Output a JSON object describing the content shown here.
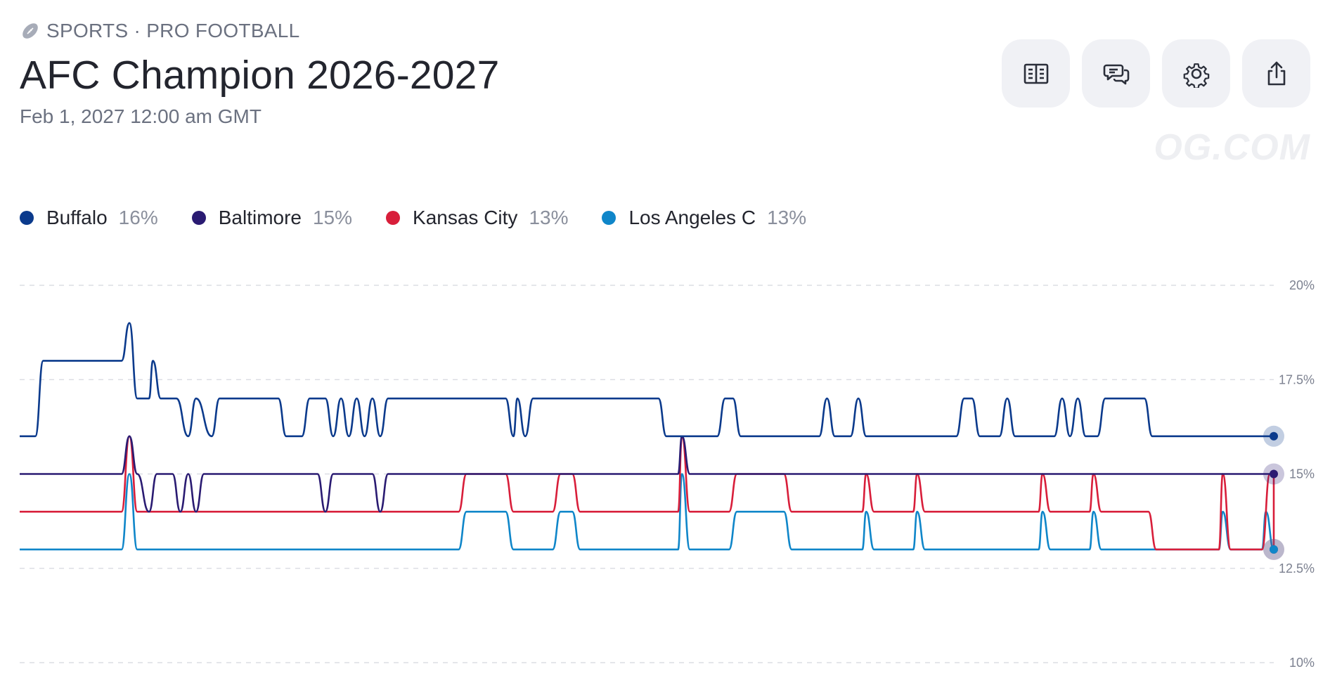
{
  "header": {
    "breadcrumb": "SPORTS · PRO FOOTBALL",
    "title": "AFC Champion 2026-2027",
    "subtitle": "Feb 1, 2027 12:00 am GMT",
    "watermark": "OG.COM"
  },
  "actions": [
    {
      "name": "rules-button",
      "icon": "book-icon"
    },
    {
      "name": "comments-button",
      "icon": "chat-icon"
    },
    {
      "name": "settings-button",
      "icon": "gear-icon"
    },
    {
      "name": "share-button",
      "icon": "share-icon"
    }
  ],
  "legend": [
    {
      "label": "Buffalo",
      "pct": "16%",
      "color": "#0b3a8c"
    },
    {
      "label": "Baltimore",
      "pct": "15%",
      "color": "#2a1b72"
    },
    {
      "label": "Kansas City",
      "pct": "13%",
      "color": "#d81e3a"
    },
    {
      "label": "Los Angeles C",
      "pct": "13%",
      "color": "#0f86c9"
    }
  ],
  "chart_data": {
    "type": "line",
    "ylim": [
      10,
      20
    ],
    "yticks": [
      "20%",
      "17.5%",
      "15%",
      "12.5%",
      "10%"
    ],
    "grid": true,
    "legend_position": "top-left",
    "series": [
      {
        "name": "Buffalo",
        "color": "#0b3a8c",
        "base": 16,
        "points": [
          [
            0.0,
            16
          ],
          [
            0.02,
            16
          ],
          [
            0.03,
            18
          ],
          [
            0.13,
            18
          ],
          [
            0.14,
            19
          ],
          [
            0.15,
            17
          ],
          [
            0.165,
            17
          ],
          [
            0.17,
            18
          ],
          [
            0.18,
            17
          ],
          [
            0.2,
            17
          ],
          [
            0.215,
            16
          ],
          [
            0.225,
            17
          ],
          [
            0.245,
            16
          ],
          [
            0.255,
            17
          ],
          [
            0.33,
            17
          ],
          [
            0.34,
            16
          ],
          [
            0.36,
            16
          ],
          [
            0.37,
            17
          ],
          [
            0.39,
            17
          ],
          [
            0.4,
            16
          ],
          [
            0.41,
            17
          ],
          [
            0.42,
            16
          ],
          [
            0.43,
            17
          ],
          [
            0.44,
            16
          ],
          [
            0.45,
            17
          ],
          [
            0.46,
            16
          ],
          [
            0.47,
            17
          ],
          [
            0.62,
            17
          ],
          [
            0.63,
            16
          ],
          [
            0.635,
            17
          ],
          [
            0.645,
            16
          ],
          [
            0.655,
            17
          ],
          [
            0.815,
            17
          ],
          [
            0.825,
            16
          ],
          [
            0.89,
            16
          ],
          [
            0.9,
            17
          ],
          [
            0.91,
            17
          ],
          [
            0.92,
            16
          ],
          [
            1.02,
            16
          ],
          [
            1.03,
            17
          ],
          [
            1.04,
            16
          ],
          [
            1.06,
            16
          ],
          [
            1.07,
            17
          ],
          [
            1.08,
            16
          ],
          [
            1.195,
            16
          ],
          [
            1.205,
            17
          ],
          [
            1.215,
            17
          ],
          [
            1.225,
            16
          ],
          [
            1.25,
            16
          ],
          [
            1.26,
            17
          ],
          [
            1.27,
            16
          ],
          [
            1.32,
            16
          ],
          [
            1.33,
            17
          ],
          [
            1.34,
            16
          ],
          [
            1.35,
            17
          ],
          [
            1.36,
            16
          ],
          [
            1.375,
            16
          ],
          [
            1.385,
            17
          ],
          [
            1.435,
            17
          ],
          [
            1.445,
            16
          ],
          [
            1.6,
            16
          ]
        ]
      },
      {
        "name": "Baltimore",
        "color": "#2a1b72",
        "points": [
          [
            0.0,
            15
          ],
          [
            0.13,
            15
          ],
          [
            0.14,
            16
          ],
          [
            0.15,
            15
          ],
          [
            0.165,
            14
          ],
          [
            0.175,
            15
          ],
          [
            0.195,
            15
          ],
          [
            0.205,
            14
          ],
          [
            0.215,
            15
          ],
          [
            0.225,
            14
          ],
          [
            0.235,
            15
          ],
          [
            0.38,
            15
          ],
          [
            0.39,
            14
          ],
          [
            0.4,
            15
          ],
          [
            0.45,
            15
          ],
          [
            0.46,
            14
          ],
          [
            0.47,
            15
          ],
          [
            0.84,
            15
          ],
          [
            0.845,
            16
          ],
          [
            0.855,
            15
          ],
          [
            1.6,
            15
          ]
        ]
      },
      {
        "name": "Kansas City",
        "color": "#d81e3a",
        "points": [
          [
            0.0,
            14
          ],
          [
            0.13,
            14
          ],
          [
            0.14,
            16
          ],
          [
            0.15,
            14
          ],
          [
            0.56,
            14
          ],
          [
            0.57,
            15
          ],
          [
            0.62,
            15
          ],
          [
            0.63,
            14
          ],
          [
            0.68,
            14
          ],
          [
            0.69,
            15
          ],
          [
            0.705,
            15
          ],
          [
            0.715,
            14
          ],
          [
            0.84,
            14
          ],
          [
            0.845,
            16
          ],
          [
            0.855,
            14
          ],
          [
            0.905,
            14
          ],
          [
            0.915,
            15
          ],
          [
            0.975,
            15
          ],
          [
            0.985,
            14
          ],
          [
            1.075,
            14
          ],
          [
            1.08,
            15
          ],
          [
            1.09,
            14
          ],
          [
            1.14,
            14
          ],
          [
            1.145,
            15
          ],
          [
            1.155,
            14
          ],
          [
            1.3,
            14
          ],
          [
            1.305,
            15
          ],
          [
            1.315,
            14
          ],
          [
            1.365,
            14
          ],
          [
            1.37,
            15
          ],
          [
            1.38,
            14
          ],
          [
            1.44,
            14
          ],
          [
            1.45,
            13
          ],
          [
            1.53,
            13
          ],
          [
            1.535,
            15
          ],
          [
            1.545,
            13
          ],
          [
            1.585,
            13
          ],
          [
            1.595,
            15
          ],
          [
            1.6,
            15
          ],
          [
            1.6,
            13
          ]
        ]
      },
      {
        "name": "Los Angeles C",
        "color": "#0f86c9",
        "points": [
          [
            0.0,
            13
          ],
          [
            0.13,
            13
          ],
          [
            0.14,
            15
          ],
          [
            0.15,
            13
          ],
          [
            0.56,
            13
          ],
          [
            0.57,
            14
          ],
          [
            0.62,
            14
          ],
          [
            0.63,
            13
          ],
          [
            0.68,
            13
          ],
          [
            0.69,
            14
          ],
          [
            0.705,
            14
          ],
          [
            0.715,
            13
          ],
          [
            0.84,
            13
          ],
          [
            0.845,
            15
          ],
          [
            0.855,
            13
          ],
          [
            0.905,
            13
          ],
          [
            0.915,
            14
          ],
          [
            0.975,
            14
          ],
          [
            0.985,
            13
          ],
          [
            1.075,
            13
          ],
          [
            1.08,
            14
          ],
          [
            1.09,
            13
          ],
          [
            1.14,
            13
          ],
          [
            1.145,
            14
          ],
          [
            1.155,
            13
          ],
          [
            1.3,
            13
          ],
          [
            1.305,
            14
          ],
          [
            1.315,
            13
          ],
          [
            1.365,
            13
          ],
          [
            1.37,
            14
          ],
          [
            1.38,
            13
          ],
          [
            1.53,
            13
          ],
          [
            1.535,
            14
          ],
          [
            1.545,
            13
          ],
          [
            1.585,
            13
          ],
          [
            1.59,
            14
          ],
          [
            1.6,
            13
          ]
        ]
      }
    ]
  }
}
